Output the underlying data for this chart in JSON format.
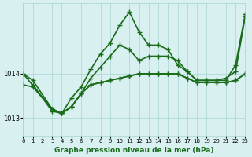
{
  "title": "Graphe pression niveau de la mer (hPa)",
  "xlabel": "Graphe pression niveau de la mer (hPa)",
  "xlim": [
    0,
    23
  ],
  "ylim": [
    1012.6,
    1015.6
  ],
  "yticks": [
    1013,
    1014
  ],
  "xticks": [
    0,
    1,
    2,
    3,
    4,
    5,
    6,
    7,
    8,
    9,
    10,
    11,
    12,
    13,
    14,
    15,
    16,
    17,
    18,
    19,
    20,
    21,
    22,
    23
  ],
  "bg_color": "#d8f0f0",
  "grid_color": "#aad4d4",
  "line_color": "#1a6b1a",
  "line_width": 1.2,
  "marker": "+",
  "marker_size": 5,
  "lines": [
    {
      "x": [
        0,
        1,
        3,
        4,
        5,
        6,
        7,
        8,
        9,
        10,
        11,
        12,
        13,
        14,
        15,
        16,
        17,
        18,
        19,
        20,
        21,
        22,
        23
      ],
      "y": [
        1014.0,
        1013.85,
        1013.2,
        1013.1,
        1013.25,
        1013.55,
        1013.9,
        1014.15,
        1014.4,
        1014.65,
        1014.55,
        1014.3,
        1014.4,
        1014.4,
        1014.4,
        1014.3,
        1014.05,
        1013.85,
        1013.85,
        1013.85,
        1013.9,
        1014.05,
        1015.3
      ]
    },
    {
      "x": [
        0,
        1,
        3,
        4,
        5,
        6,
        7,
        8,
        9,
        10,
        11,
        12,
        13,
        14,
        15,
        16,
        17,
        18,
        19,
        20,
        21,
        22,
        23
      ],
      "y": [
        1013.75,
        1013.7,
        1013.2,
        1013.1,
        1013.25,
        1013.55,
        1013.75,
        1013.8,
        1013.85,
        1013.9,
        1013.95,
        1014.0,
        1014.0,
        1014.0,
        1014.0,
        1014.0,
        1013.9,
        1013.8,
        1013.8,
        1013.8,
        1013.8,
        1013.85,
        1014.0
      ]
    },
    {
      "x": [
        0,
        3,
        4,
        5,
        6,
        7,
        8,
        9,
        10,
        11,
        12,
        13,
        14,
        15,
        16,
        17,
        18,
        19,
        20,
        21,
        22,
        23
      ],
      "y": [
        1014.0,
        1013.2,
        1013.1,
        1013.45,
        1013.7,
        1014.1,
        1014.45,
        1014.7,
        1015.1,
        1015.4,
        1014.95,
        1014.65,
        1014.65,
        1014.55,
        1014.2,
        1014.05,
        1013.85,
        1013.85,
        1013.85,
        1013.85,
        1014.2,
        1015.35
      ]
    },
    {
      "x": [
        1,
        3,
        4,
        5,
        6,
        7,
        8,
        9,
        10,
        11,
        12,
        13,
        14,
        15,
        16,
        17,
        18,
        19,
        20,
        21,
        22,
        23
      ],
      "y": [
        1013.75,
        1013.15,
        1013.1,
        1013.25,
        1013.55,
        1013.75,
        1013.8,
        1013.85,
        1013.9,
        1013.95,
        1014.0,
        1014.0,
        1014.0,
        1014.0,
        1014.0,
        1013.9,
        1013.8,
        1013.8,
        1013.8,
        1013.8,
        1013.85,
        1014.0
      ]
    }
  ]
}
